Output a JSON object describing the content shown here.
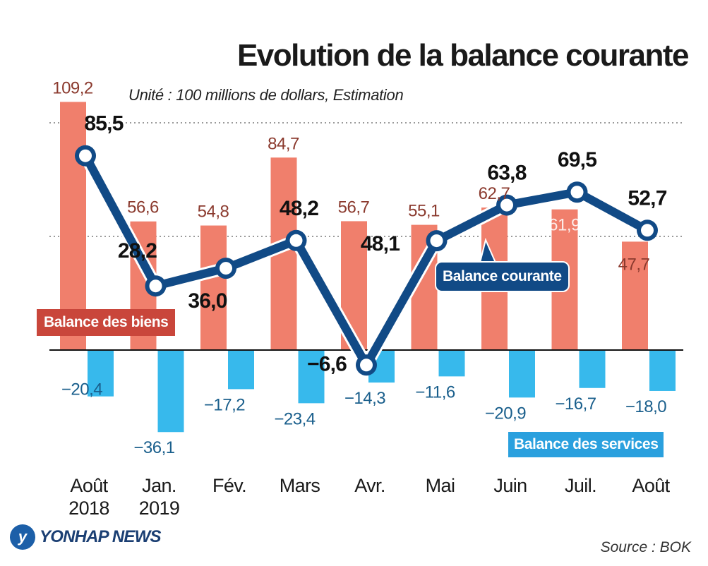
{
  "title": "Evolution de la balance courante",
  "subtitle": "Unité : 100 millions de dollars, Estimation",
  "source": "Source : BOK",
  "logo_text": "YONHAP NEWS",
  "colors": {
    "goods": "#f07f6c",
    "goods_label": "#8b3a2e",
    "services": "#37b9ec",
    "services_label": "#1a5f8c",
    "current": "#114a86",
    "current_label": "#111111"
  },
  "chart_data": {
    "type": "bar",
    "categories": [
      [
        "Août",
        "2018"
      ],
      [
        "Jan.",
        "2019"
      ],
      [
        "Fév."
      ],
      [
        "Mars"
      ],
      [
        "Avr."
      ],
      [
        "Mai"
      ],
      [
        "Juin"
      ],
      [
        "Juil."
      ],
      [
        "Août"
      ]
    ],
    "ylim": [
      -40,
      120
    ],
    "grid": "dotted",
    "series": [
      {
        "name": "Balance des biens",
        "type": "bar",
        "values": [
          109.2,
          56.6,
          54.8,
          84.7,
          56.7,
          55.1,
          62.7,
          61.9,
          47.7
        ],
        "labels": [
          "109,2",
          "56,6",
          "54,8",
          "84,7",
          "56,7",
          "55,1",
          "62,7",
          "61,9",
          "47,7"
        ]
      },
      {
        "name": "Balance des services",
        "type": "bar",
        "values": [
          -20.4,
          -36.1,
          -17.2,
          -23.4,
          -14.3,
          -11.6,
          -20.9,
          -16.7,
          -18.0
        ],
        "labels": [
          "−20,4",
          "−36,1",
          "−17,2",
          "−23,4",
          "−14,3",
          "−11,6",
          "−20,9",
          "−16,7",
          "−18,0"
        ]
      },
      {
        "name": "Balance courante",
        "type": "line",
        "values": [
          85.5,
          28.2,
          36.0,
          48.2,
          -6.6,
          48.1,
          63.8,
          69.5,
          52.7
        ],
        "labels": [
          "85,5",
          "28,2",
          "36,0",
          "48,2",
          "−6,6",
          "48,1",
          "63,8",
          "69,5",
          "52,7"
        ]
      }
    ]
  }
}
